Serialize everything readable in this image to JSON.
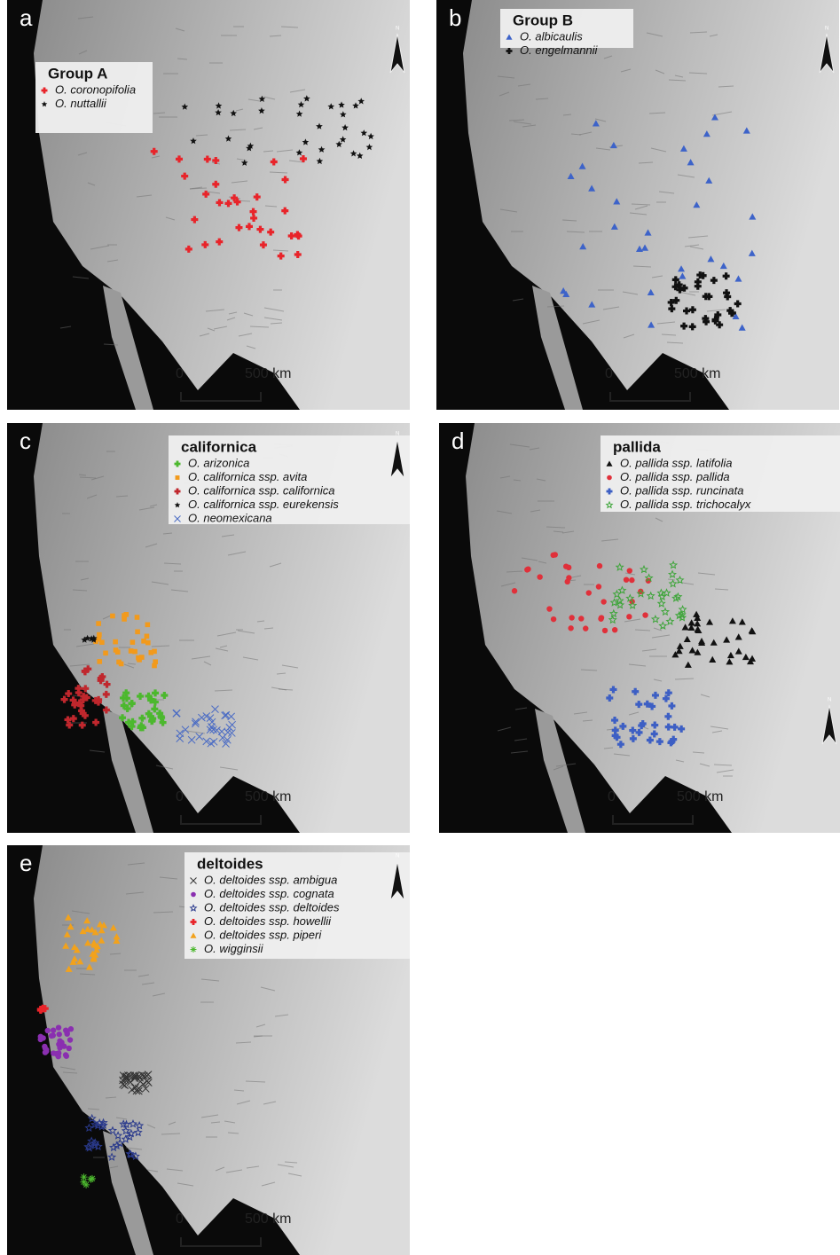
{
  "panels": [
    {
      "label": "a",
      "legend_title": "Group A",
      "entries": [
        {
          "name": "O. coronopifolia",
          "color": "#e8242a",
          "marker": "plus"
        },
        {
          "name": "O. nuttallii",
          "color": "#111111",
          "marker": "star"
        }
      ],
      "scale": {
        "start": "0",
        "end": "500 km"
      },
      "north": "N"
    },
    {
      "label": "b",
      "legend_title": "Group B",
      "entries": [
        {
          "name": "O. albicaulis",
          "color": "#3d63c9",
          "marker": "triangle"
        },
        {
          "name": "O. engelmannii",
          "color": "#111111",
          "marker": "plus"
        }
      ],
      "scale": {
        "start": "0",
        "end": "500 km"
      },
      "north": "N"
    },
    {
      "label": "c",
      "legend_title": "californica",
      "entries": [
        {
          "name": "O. arizonica",
          "color": "#4cb82e",
          "marker": "plus"
        },
        {
          "name": "O. californica ssp. avita",
          "color": "#f29a1c",
          "marker": "square"
        },
        {
          "name": "O. californica ssp. californica",
          "color": "#c0272d",
          "marker": "plus"
        },
        {
          "name": "O. californica ssp. eurekensis",
          "color": "#111111",
          "marker": "star"
        },
        {
          "name": "O. neomexicana",
          "color": "#4a6bc4",
          "marker": "x"
        }
      ],
      "scale": {
        "start": "0",
        "end": "500 km"
      },
      "north": "N"
    },
    {
      "label": "d",
      "legend_title": "pallida",
      "entries": [
        {
          "name": "O. pallida ssp. latifolia",
          "color": "#111111",
          "marker": "triangle"
        },
        {
          "name": "O. pallida ssp. pallida",
          "color": "#e0303a",
          "marker": "circle"
        },
        {
          "name": "O. pallida ssp. runcinata",
          "color": "#3d5fc4",
          "marker": "plus"
        },
        {
          "name": "O. pallida ssp. trichocalyx",
          "color": "#3ea53a",
          "marker": "starOpen"
        }
      ],
      "scale": {
        "start": "0",
        "end": "500 km"
      },
      "north": "N"
    },
    {
      "label": "e",
      "legend_title": "deltoides",
      "entries": [
        {
          "name": "O. deltoides ssp. ambigua",
          "color": "#333333",
          "marker": "x"
        },
        {
          "name": "O. deltoides ssp. cognata",
          "color": "#8a2fb0",
          "marker": "circle"
        },
        {
          "name": "O. deltoides ssp. deltoides",
          "color": "#2a3a8c",
          "marker": "starOpen"
        },
        {
          "name": "O. deltoides ssp. howellii",
          "color": "#e8242a",
          "marker": "plus"
        },
        {
          "name": "O. deltoides ssp. piperi",
          "color": "#f2a21c",
          "marker": "triangle"
        },
        {
          "name": "O. wigginsii",
          "color": "#4cb82e",
          "marker": "asterisk"
        }
      ],
      "scale": {
        "start": "0",
        "end": "500 km"
      },
      "north": "N"
    }
  ]
}
